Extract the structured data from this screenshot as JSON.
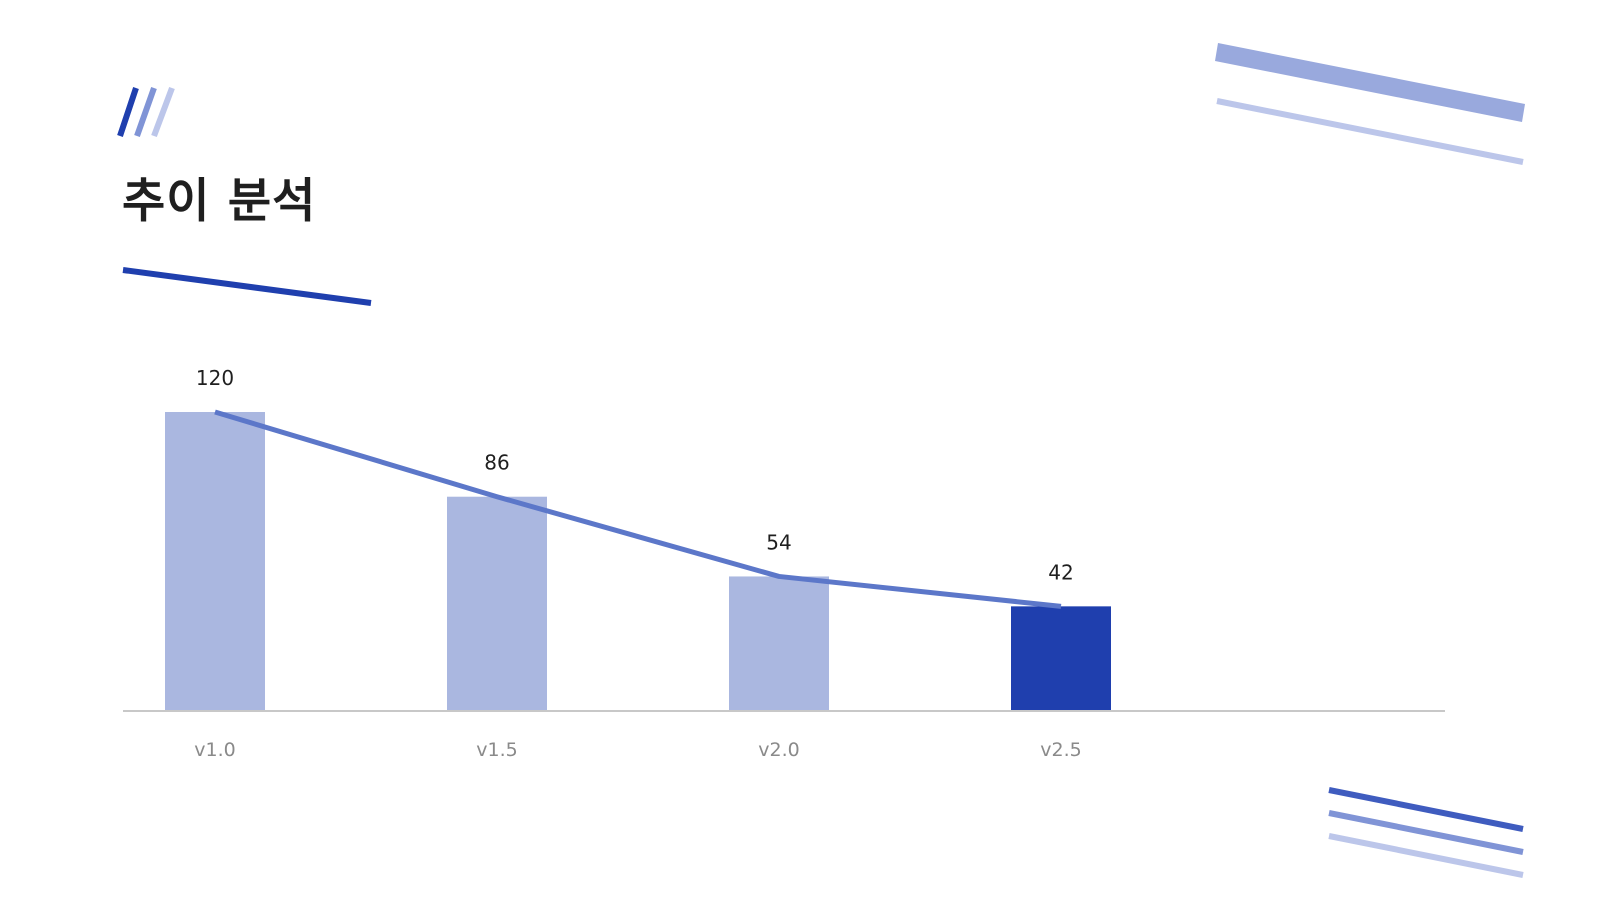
{
  "title": "추이 분석",
  "colors": {
    "accent": "#1f3fae",
    "bar_muted": "#aab7e0",
    "line": "#5c77c9",
    "axis": "#c8c8c8",
    "deco_mid": "#8094d6",
    "deco_light": "#bcc6ea"
  },
  "chart_data": {
    "type": "bar",
    "categories": [
      "v1.0",
      "v1.5",
      "v2.0",
      "v2.5"
    ],
    "values": [
      120,
      86,
      54,
      42
    ],
    "data_labels": [
      "120",
      "86",
      "54",
      "42"
    ],
    "highlight_index": 3,
    "overlay": "line",
    "title": "",
    "xlabel": "",
    "ylabel": "",
    "ylim": [
      0,
      120
    ],
    "grid": false,
    "legend": "none"
  }
}
